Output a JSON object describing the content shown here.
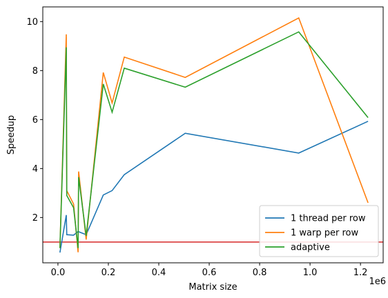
{
  "chart_data": {
    "type": "line",
    "xlabel": "Matrix size",
    "ylabel": "Speedup",
    "x_offset_label": "1e6",
    "xlim": [
      -0.06,
      1.29
    ],
    "ylim": [
      0.15,
      10.6
    ],
    "x_ticks": [
      0.0,
      0.2,
      0.4,
      0.6,
      0.8,
      1.0,
      1.2
    ],
    "x_tick_labels": [
      "0.0",
      "0.2",
      "0.4",
      "0.6",
      "0.8",
      "1.0",
      "1.2"
    ],
    "y_ticks": [
      2,
      4,
      6,
      8,
      10
    ],
    "y_tick_labels": [
      "2",
      "4",
      "6",
      "8",
      "10"
    ],
    "grid": false,
    "legend_position": "lower-right",
    "reference_line": {
      "y": 1.0,
      "color": "#d62728"
    },
    "series": [
      {
        "name": "1 thread per row",
        "color": "#1f77b4",
        "points": [
          [
            0.008,
            0.57
          ],
          [
            0.033,
            2.1
          ],
          [
            0.035,
            1.3
          ],
          [
            0.062,
            1.28
          ],
          [
            0.08,
            1.43
          ],
          [
            0.112,
            1.3
          ],
          [
            0.18,
            2.92
          ],
          [
            0.215,
            3.1
          ],
          [
            0.263,
            3.75
          ],
          [
            0.505,
            5.44
          ],
          [
            0.955,
            4.63
          ],
          [
            1.23,
            5.93
          ]
        ]
      },
      {
        "name": "1 warp per row",
        "color": "#ff7f0e",
        "points": [
          [
            0.008,
            0.75
          ],
          [
            0.033,
            9.48
          ],
          [
            0.035,
            3.1
          ],
          [
            0.062,
            2.55
          ],
          [
            0.08,
            0.58
          ],
          [
            0.082,
            3.88
          ],
          [
            0.112,
            1.1
          ],
          [
            0.18,
            7.92
          ],
          [
            0.215,
            6.68
          ],
          [
            0.263,
            8.55
          ],
          [
            0.505,
            7.72
          ],
          [
            0.955,
            10.15
          ],
          [
            1.23,
            2.6
          ]
        ]
      },
      {
        "name": "adaptive",
        "color": "#2ca02c",
        "points": [
          [
            0.008,
            0.75
          ],
          [
            0.033,
            8.95
          ],
          [
            0.035,
            2.9
          ],
          [
            0.062,
            2.4
          ],
          [
            0.08,
            0.75
          ],
          [
            0.082,
            3.65
          ],
          [
            0.112,
            1.25
          ],
          [
            0.18,
            7.45
          ],
          [
            0.215,
            6.3
          ],
          [
            0.263,
            8.1
          ],
          [
            0.505,
            7.32
          ],
          [
            0.955,
            9.58
          ],
          [
            1.23,
            6.08
          ]
        ]
      }
    ]
  }
}
